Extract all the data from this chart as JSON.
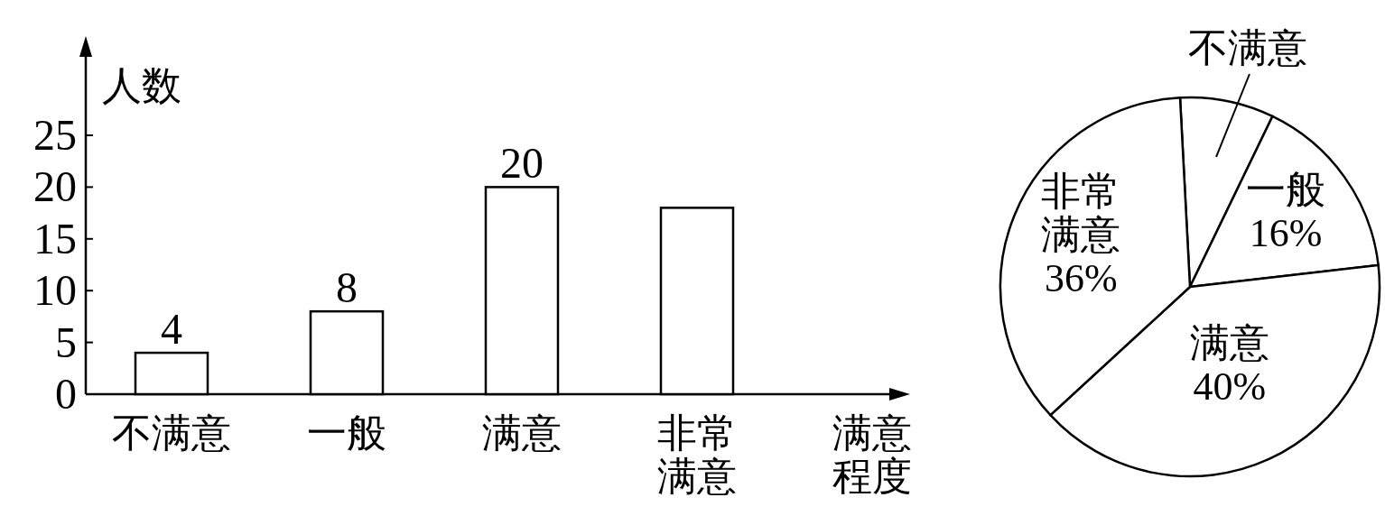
{
  "chart_data": [
    {
      "type": "bar",
      "categories": [
        "不满意",
        "一般",
        "满意",
        "非常满意"
      ],
      "values": [
        4,
        8,
        20,
        18
      ],
      "value_labels": [
        "4",
        "8",
        "20",
        null
      ],
      "color": "#ffffff",
      "ylim": [
        0,
        25
      ],
      "yticks": [
        0,
        5,
        10,
        15,
        20,
        25
      ],
      "ylabel": "人数",
      "xlabel": "满意程度",
      "grid": false
    },
    {
      "type": "pie",
      "categories": [
        "不满意",
        "一般",
        "满意",
        "非常满意"
      ],
      "values": [
        8,
        16,
        40,
        36
      ],
      "value_labels": [
        null,
        "16%",
        "40%",
        "36%"
      ],
      "colors": [
        "#ffffff",
        "#ffffff",
        "#ffffff",
        "#ffffff"
      ]
    }
  ]
}
